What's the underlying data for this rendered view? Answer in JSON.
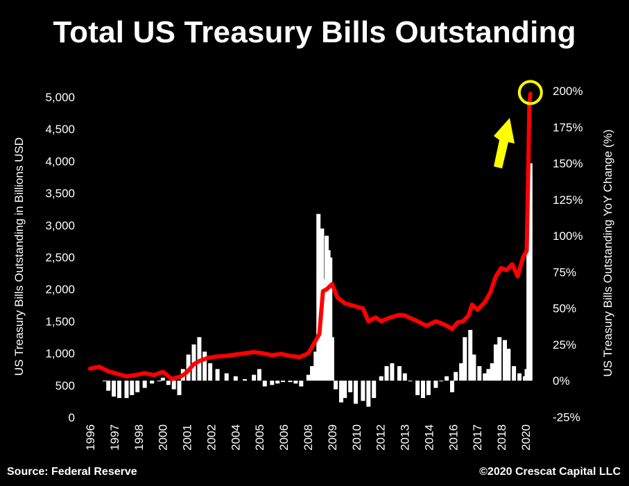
{
  "chart_data": {
    "type": "line",
    "title": "Total US Treasury Bills Outstanding",
    "ylabel": "US Treasury Bills Outstanding in Billions USD",
    "y2label": "US Treasury Bills Outstanding YoY Change (%)",
    "ylim": [
      0,
      5000
    ],
    "y2lim": [
      -25,
      200
    ],
    "yticks": [
      "0",
      "500",
      "1,000",
      "1,500",
      "2,000",
      "2,500",
      "3,000",
      "3,500",
      "4,000",
      "4,500",
      "5,000"
    ],
    "y2ticks": [
      "-25%",
      "0%",
      "25%",
      "50%",
      "75%",
      "100%",
      "125%",
      "150%",
      "175%",
      "200%"
    ],
    "xticks": [
      "1996",
      "1997",
      "1998",
      "2000",
      "2001",
      "2002",
      "2004",
      "2005",
      "2006",
      "2008",
      "2009",
      "2010",
      "2012",
      "2013",
      "2014",
      "2016",
      "2017",
      "2018",
      "2020"
    ],
    "xlim": [
      1996.0,
      2020.4
    ],
    "series": [
      {
        "axis": "left",
        "color": "#ff0000",
        "kind": "line",
        "x": [
          1996.0,
          1996.5,
          1997.0,
          1997.5,
          1998.0,
          1998.5,
          1999.0,
          1999.5,
          2000.0,
          2000.5,
          2001.0,
          2001.3,
          2001.7,
          2002.0,
          2002.5,
          2003.0,
          2003.5,
          2004.0,
          2004.5,
          2005.0,
          2005.5,
          2006.0,
          2006.5,
          2007.0,
          2007.5,
          2008.0,
          2008.3,
          2008.6,
          2008.8,
          2009.0,
          2009.3,
          2009.6,
          2010.0,
          2010.5,
          2011.0,
          2011.3,
          2011.7,
          2012.0,
          2012.5,
          2013.0,
          2013.3,
          2013.6,
          2014.0,
          2014.5,
          2015.0,
          2015.3,
          2015.6,
          2015.9,
          2016.2,
          2016.5,
          2016.8,
          2017.0,
          2017.3,
          2017.7,
          2018.0,
          2018.3,
          2018.6,
          2018.9,
          2019.2,
          2019.5,
          2019.8,
          2020.0,
          2020.05,
          2020.1,
          2020.15,
          2020.2
        ],
        "y": [
          760,
          790,
          720,
          680,
          640,
          660,
          690,
          660,
          710,
          600,
          640,
          700,
          830,
          880,
          930,
          950,
          960,
          980,
          1000,
          1020,
          1000,
          970,
          990,
          960,
          940,
          1000,
          1150,
          1300,
          1970,
          2000,
          2080,
          1870,
          1780,
          1740,
          1700,
          1500,
          1560,
          1500,
          1560,
          1600,
          1590,
          1550,
          1500,
          1430,
          1500,
          1470,
          1430,
          1380,
          1480,
          1500,
          1590,
          1760,
          1680,
          1800,
          1950,
          2200,
          2330,
          2300,
          2390,
          2200,
          2500,
          2600,
          3300,
          4100,
          4900,
          5050
        ]
      },
      {
        "axis": "right",
        "color": "#ffffff",
        "kind": "bar",
        "x": [
          1996.8,
          1997.0,
          1997.3,
          1997.6,
          1998.0,
          1998.3,
          1998.6,
          1999.0,
          1999.4,
          1999.8,
          2000.0,
          2000.3,
          2000.6,
          2000.9,
          2001.1,
          2001.4,
          2001.7,
          2002.0,
          2002.3,
          2002.6,
          2003.0,
          2003.5,
          2004.0,
          2004.5,
          2005.0,
          2005.3,
          2005.6,
          2006.0,
          2006.3,
          2006.6,
          2007.0,
          2007.3,
          2007.6,
          2008.0,
          2008.2,
          2008.4,
          2008.55,
          2008.65,
          2008.75,
          2008.85,
          2009.0,
          2009.1,
          2009.2,
          2009.3,
          2009.5,
          2009.8,
          2010.0,
          2010.3,
          2010.6,
          2011.0,
          2011.3,
          2011.6,
          2012.0,
          2012.3,
          2012.6,
          2013.0,
          2013.3,
          2013.6,
          2014.0,
          2014.3,
          2014.6,
          2015.0,
          2015.3,
          2015.6,
          2015.9,
          2016.1,
          2016.4,
          2016.6,
          2016.9,
          2017.1,
          2017.4,
          2017.7,
          2017.9,
          2018.1,
          2018.3,
          2018.5,
          2018.8,
          2019.0,
          2019.3,
          2019.6,
          2019.9,
          2020.0,
          2020.1,
          2020.15,
          2020.2
        ],
        "y": [
          0,
          -7,
          -11,
          -12,
          -12,
          -10,
          -8,
          -5,
          -2,
          0,
          2,
          -3,
          -6,
          -10,
          8,
          18,
          25,
          30,
          20,
          12,
          8,
          5,
          3,
          1,
          4,
          8,
          -4,
          -3,
          -2,
          -1,
          -1,
          -2,
          -4,
          4,
          10,
          20,
          115,
          95,
          105,
          70,
          100,
          90,
          85,
          30,
          -6,
          -15,
          -12,
          -8,
          -16,
          -14,
          -18,
          -12,
          3,
          10,
          12,
          10,
          5,
          0,
          -10,
          -12,
          -10,
          -5,
          0,
          3,
          -8,
          6,
          12,
          30,
          35,
          18,
          10,
          5,
          8,
          12,
          25,
          30,
          28,
          22,
          10,
          5,
          3,
          8,
          100,
          125,
          150
        ]
      }
    ],
    "annotations": [
      "yellow-circle-at-peak",
      "yellow-up-arrow"
    ]
  },
  "footer": {
    "source": "Source: Federal Reserve",
    "copyright": "©2020 Crescat Capital LLC"
  },
  "colors": {
    "background": "#000000",
    "line": "#ff0000",
    "bars": "#ffffff",
    "annotation": "#ffff00"
  }
}
